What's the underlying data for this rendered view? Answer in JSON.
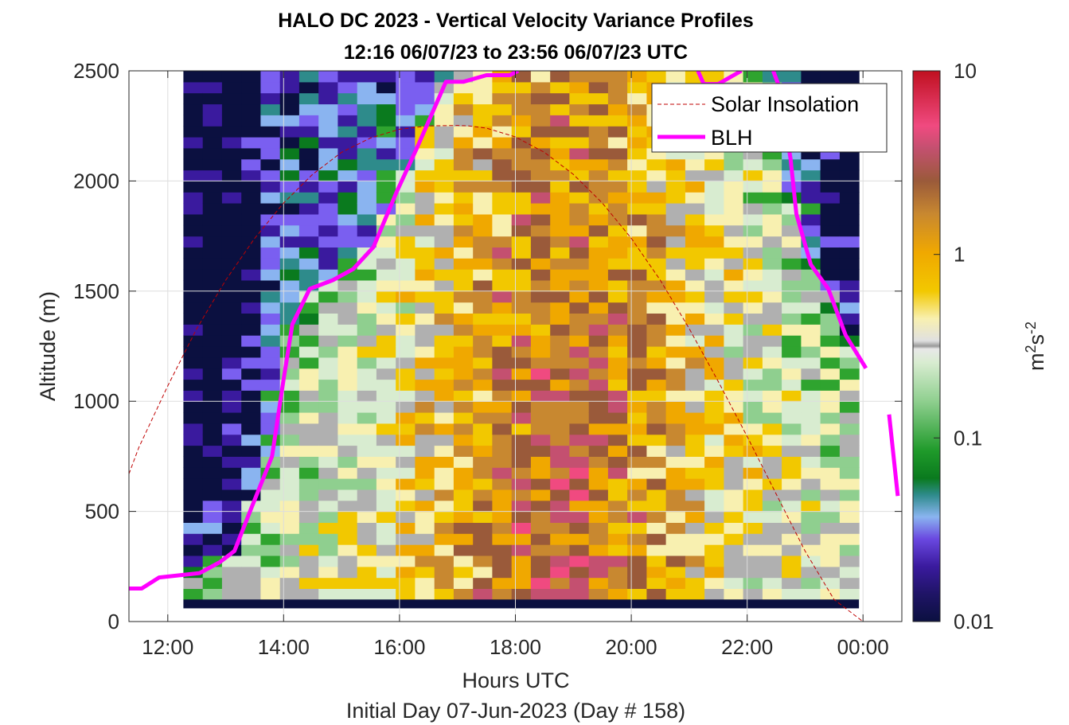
{
  "chart_data": {
    "type": "heatmap",
    "title": "HALO DC 2023 - Vertical Velocity Variance Profiles",
    "subtitle": "12:16 06/07/23 to 23:56 06/07/23  UTC",
    "xlabel": "Hours UTC",
    "xlabel2": "Initial Day 07-Jun-2023 (Day # 158)",
    "ylabel": "Altitude (m)",
    "xlim": [
      11.33,
      24.67
    ],
    "ylim": [
      0,
      2500
    ],
    "xticks": [
      {
        "value": 12,
        "label": "12:00"
      },
      {
        "value": 14,
        "label": "14:00"
      },
      {
        "value": 16,
        "label": "16:00"
      },
      {
        "value": 18,
        "label": "18:00"
      },
      {
        "value": 20,
        "label": "20:00"
      },
      {
        "value": 22,
        "label": "22:00"
      },
      {
        "value": 24,
        "label": "00:00"
      }
    ],
    "yticks": [
      {
        "value": 0,
        "label": "0"
      },
      {
        "value": 500,
        "label": "500"
      },
      {
        "value": 1000,
        "label": "1000"
      },
      {
        "value": 1500,
        "label": "1500"
      },
      {
        "value": 2000,
        "label": "2000"
      },
      {
        "value": 2500,
        "label": "2500"
      }
    ],
    "grid": true,
    "legend_placement": "top-right",
    "heatmap": {
      "time_start": 12.27,
      "time_end": 23.93,
      "altitude_start": 100,
      "altitude_end": 2500,
      "altitude_step": 50,
      "colorscale": "log",
      "clim": [
        0.01,
        10
      ],
      "approximate": true
    },
    "colorbar": {
      "label_base": "m",
      "label_base_exp": "2",
      "label_unit": "s",
      "label_unit_exp": "-2",
      "ticks": [
        {
          "value": 0.01,
          "label": "0.01"
        },
        {
          "value": 0.1,
          "label": "0.1"
        },
        {
          "value": 1,
          "label": "1"
        },
        {
          "value": 10,
          "label": "10"
        }
      ],
      "colors": [
        "#0b1040",
        "#3a1a9e",
        "#7a5ff0",
        "#8ab4f0",
        "#2e8b8b",
        "#0a7a1e",
        "#2fa42f",
        "#8fcf8f",
        "#d8ecd0",
        "#b0b0b0",
        "#f8f0b0",
        "#f2c800",
        "#f0a800",
        "#c88830",
        "#9a5a3a",
        "#c45070",
        "#f04a80",
        "#c01020"
      ]
    },
    "series": [
      {
        "name": "Solar Insolation",
        "color": "#c00000",
        "style": "dashed",
        "x": [
          11.33,
          11.5,
          12.0,
          12.5,
          13.0,
          13.5,
          14.0,
          14.5,
          15.0,
          15.5,
          16.0,
          16.5,
          17.0,
          17.2,
          17.5,
          18.0,
          18.5,
          19.0,
          19.5,
          20.0,
          20.5,
          21.0,
          21.5,
          22.0,
          22.5,
          23.0,
          23.5,
          24.0,
          24.3,
          24.5,
          24.67
        ],
        "y": [
          670,
          790,
          1070,
          1330,
          1550,
          1740,
          1900,
          2030,
          2130,
          2195,
          2235,
          2250,
          2252,
          2250,
          2240,
          2200,
          2130,
          2030,
          1900,
          1740,
          1550,
          1330,
          1090,
          840,
          580,
          320,
          100,
          0,
          0,
          0,
          0
        ]
      },
      {
        "name": "BLH",
        "color": "#ff00ff",
        "style": "solid",
        "segments": [
          {
            "x": [
              11.33,
              11.55,
              11.85,
              12.2,
              12.55,
              12.9,
              13.15,
              13.45,
              13.8,
              14.0,
              14.15,
              14.45,
              14.85,
              15.2,
              15.55,
              15.95,
              16.3,
              16.8,
              17.1,
              17.5,
              17.9,
              18.05
            ],
            "y": [
              150,
              150,
              200,
              210,
              220,
              270,
              320,
              520,
              750,
              1100,
              1350,
              1510,
              1550,
              1600,
              1700,
              1950,
              2150,
              2450,
              2450,
              2480,
              2480,
              2500
            ]
          },
          {
            "x": [
              21.15,
              21.25,
              21.5,
              21.9
            ],
            "y": [
              2500,
              2440,
              2440,
              2500
            ]
          },
          {
            "x": [
              22.45,
              22.55,
              22.75,
              22.85,
              23.1,
              23.4,
              23.7,
              24.05
            ],
            "y": [
              2500,
              2430,
              2100,
              1850,
              1620,
              1510,
              1300,
              1150
            ]
          },
          {
            "x": [
              24.45,
              24.6
            ],
            "y": [
              940,
              570
            ]
          }
        ]
      }
    ]
  }
}
